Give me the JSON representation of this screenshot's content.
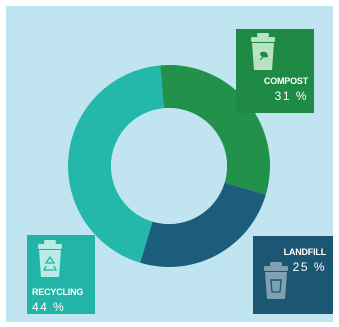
{
  "chart_data": {
    "type": "pie",
    "style": "donut",
    "categories": [
      "COMPOST",
      "LANDFILL",
      "RECYCLING"
    ],
    "values": [
      31,
      25,
      44
    ],
    "value_labels": [
      "31 %",
      "25 %",
      "44 %"
    ],
    "colors": [
      "#22924b",
      "#1b5d7a",
      "#24b8ab"
    ],
    "icons": [
      "compost-bin-icon",
      "landfill-bin-icon",
      "recycling-bin-icon"
    ]
  },
  "theme": {
    "background": "#c0e5f0",
    "compost_box": "#1f8a45",
    "landfill_box": "#1b5673",
    "recycling_box": "#22b4a6"
  },
  "labels": {
    "compost": {
      "name": "COMPOST",
      "pct": "31 %"
    },
    "landfill": {
      "name": "LANDFILL",
      "pct": "25 %"
    },
    "recycling": {
      "name": "RECYCLING",
      "pct": "44 %"
    }
  }
}
